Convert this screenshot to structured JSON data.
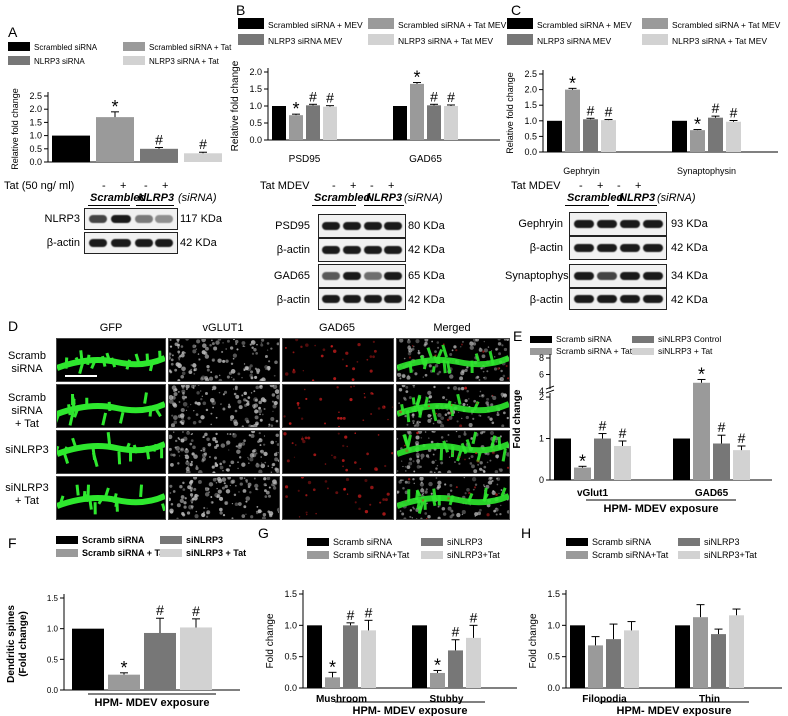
{
  "panels": {
    "A": "A",
    "B": "B",
    "C": "C",
    "D": "D",
    "E": "E",
    "F": "F",
    "G": "G",
    "H": "H"
  },
  "colors": {
    "black": "#000000",
    "dark_gray": "#777777",
    "mid_gray": "#9a9a9a",
    "light_gray": "#d2d2d2",
    "green": "#2ee82e",
    "red": "#e02020"
  },
  "chart_data": [
    {
      "id": "A",
      "type": "bar",
      "legend": [
        "Scrambled siRNA",
        "Scrambled siRNA + Tat",
        "NLRP3 siRNA",
        "NLRP3 siRNA + Tat"
      ],
      "categories": [
        ""
      ],
      "series": [
        {
          "name": "Scrambled siRNA",
          "values": [
            1.0
          ],
          "error": [
            0
          ]
        },
        {
          "name": "Scrambled siRNA + Tat",
          "values": [
            1.7
          ],
          "error": [
            0.2
          ]
        },
        {
          "name": "NLRP3 siRNA",
          "values": [
            0.5
          ],
          "error": [
            0.05
          ]
        },
        {
          "name": "NLRP3 siRNA + Tat",
          "values": [
            0.33
          ],
          "error": [
            0.04
          ]
        }
      ],
      "marks": [
        "",
        "*",
        "#",
        "#"
      ],
      "ylabel": "Relative fold change",
      "yticks": [
        "0.0",
        "0.5",
        "1.0",
        "1.5",
        "2.0",
        "2.5"
      ],
      "ylim": [
        0,
        2.5
      ]
    },
    {
      "id": "B",
      "type": "bar",
      "legend": [
        "Scrambled siRNA + MEV",
        "Scrambled siRNA + Tat MEV",
        "NLRP3 siRNA MEV",
        "NLRP3 siRNA + Tat MEV"
      ],
      "categories": [
        "PSD95",
        "GAD65"
      ],
      "series": [
        {
          "name": "Scrambled siRNA + MEV",
          "values": [
            1.0,
            1.0
          ],
          "error": [
            0,
            0
          ]
        },
        {
          "name": "Scrambled siRNA + Tat MEV",
          "values": [
            0.73,
            1.65
          ],
          "error": [
            0.03,
            0.04
          ]
        },
        {
          "name": "NLRP3 siRNA MEV",
          "values": [
            1.02,
            1.02
          ],
          "error": [
            0.03,
            0.03
          ]
        },
        {
          "name": "NLRP3 siRNA + Tat MEV",
          "values": [
            0.98,
            1.0
          ],
          "error": [
            0.03,
            0.03
          ]
        }
      ],
      "marks": [
        [
          "",
          "*",
          "#",
          "#"
        ],
        [
          "",
          "*",
          "#",
          "#"
        ]
      ],
      "ylabel": "Relative fold change",
      "yticks": [
        "0.0",
        "0.5",
        "1.0",
        "1.5",
        "2.0"
      ],
      "ylim": [
        0,
        2.0
      ]
    },
    {
      "id": "C",
      "type": "bar",
      "legend": [
        "Scrambled siRNA + MEV",
        "Scrambled siRNA + Tat MEV",
        "NLRP3 siRNA MEV",
        "NLRP3 siRNA + Tat MEV"
      ],
      "categories": [
        "Gephryin",
        "Synaptophysin"
      ],
      "series": [
        {
          "name": "Scrambled siRNA + MEV",
          "values": [
            1.0,
            1.0
          ],
          "error": [
            0,
            0
          ]
        },
        {
          "name": "Scrambled siRNA + Tat MEV",
          "values": [
            2.0,
            0.7
          ],
          "error": [
            0.04,
            0.02
          ]
        },
        {
          "name": "NLRP3 siRNA MEV",
          "values": [
            1.05,
            1.1
          ],
          "error": [
            0.03,
            0.05
          ]
        },
        {
          "name": "NLRP3 siRNA + Tat MEV",
          "values": [
            1.02,
            0.97
          ],
          "error": [
            0.02,
            0.04
          ]
        }
      ],
      "marks": [
        [
          "",
          "*",
          "#",
          "#"
        ],
        [
          "",
          "*",
          "#",
          "#"
        ]
      ],
      "ylabel": "Relative fold change",
      "yticks": [
        "0.0",
        "0.5",
        "1.0",
        "1.5",
        "2.0",
        "2.5"
      ],
      "ylim": [
        0,
        2.5
      ]
    },
    {
      "id": "E",
      "type": "bar",
      "legend": [
        "Scramb siRNA",
        "siNLRP3 Control",
        "Scramb siRNA + Tat",
        "siNLRP3 + Tat"
      ],
      "categories": [
        "vGlut1",
        "GAD65"
      ],
      "series": [
        {
          "name": "Scramb siRNA",
          "values": [
            1.0,
            1.0
          ],
          "error": [
            0,
            0
          ]
        },
        {
          "name": "Scramb siRNA + Tat",
          "values": [
            0.3,
            5.0
          ],
          "error": [
            0.03,
            0.4
          ]
        },
        {
          "name": "siNLRP3 Control",
          "values": [
            1.0,
            0.88
          ],
          "error": [
            0.12,
            0.2
          ]
        },
        {
          "name": "siNLRP3 + Tat",
          "values": [
            0.82,
            0.72
          ],
          "error": [
            0.12,
            0.1
          ]
        }
      ],
      "marks": [
        [
          "",
          "*",
          "#",
          "#"
        ],
        [
          "",
          "*",
          "#",
          "#"
        ]
      ],
      "ylabel": "Fold change",
      "xlabel": "HPM- MDEV exposure",
      "yticks": [
        "0",
        "1",
        "2",
        "4",
        "6",
        "8"
      ],
      "ylim": [
        0,
        8
      ]
    },
    {
      "id": "F",
      "type": "bar",
      "legend": [
        "Scramb siRNA",
        "siNLRP3",
        "Scramb siRNA + Tat",
        "siNLRP3 + Tat"
      ],
      "categories": [
        ""
      ],
      "series": [
        {
          "name": "Scramb siRNA",
          "values": [
            1.0
          ],
          "error": [
            0
          ]
        },
        {
          "name": "Scramb siRNA + Tat",
          "values": [
            0.25
          ],
          "error": [
            0.03
          ]
        },
        {
          "name": "siNLRP3",
          "values": [
            0.93
          ],
          "error": [
            0.24
          ]
        },
        {
          "name": "siNLRP3 + Tat",
          "values": [
            1.02
          ],
          "error": [
            0.14
          ]
        }
      ],
      "marks": [
        "",
        "*",
        "#",
        "#"
      ],
      "ylabel": "Dendritic spines (Fold change)",
      "xlabel": "HPM- MDEV exposure",
      "yticks": [
        "0.0",
        "0.5",
        "1.0",
        "1.5"
      ],
      "ylim": [
        0,
        1.5
      ]
    },
    {
      "id": "G",
      "type": "bar",
      "legend": [
        "Scramb siRNA",
        "siNLRP3",
        "Scramb siRNA+Tat",
        "siNLRP3+Tat"
      ],
      "categories": [
        "Mushroom",
        "Stubby"
      ],
      "series": [
        {
          "name": "Scramb siRNA",
          "values": [
            1.0,
            1.0
          ],
          "error": [
            0,
            0
          ]
        },
        {
          "name": "Scramb siRNA+Tat",
          "values": [
            0.17,
            0.24
          ],
          "error": [
            0.08,
            0.04
          ]
        },
        {
          "name": "siNLRP3",
          "values": [
            1.0,
            0.6
          ],
          "error": [
            0.04,
            0.17
          ]
        },
        {
          "name": "siNLRP3+Tat",
          "values": [
            0.92,
            0.8
          ],
          "error": [
            0.16,
            0.2
          ]
        }
      ],
      "marks": [
        [
          "",
          "*",
          "#",
          "#"
        ],
        [
          "",
          "*",
          "#",
          "#"
        ]
      ],
      "ylabel": "Fold change",
      "xlabel": "HPM- MDEV exposure",
      "yticks": [
        "0.0",
        "0.5",
        "1.0",
        "1.5"
      ],
      "ylim": [
        0,
        1.5
      ]
    },
    {
      "id": "H",
      "type": "bar",
      "legend": [
        "Scramb siRNA",
        "siNLRP3",
        "Scramb siRNA+Tat",
        "siNLRP3+Tat"
      ],
      "categories": [
        "Filopodia",
        "Thin"
      ],
      "series": [
        {
          "name": "Scramb siRNA",
          "values": [
            1.0,
            1.0
          ],
          "error": [
            0,
            0
          ]
        },
        {
          "name": "Scramb siRNA+Tat",
          "values": [
            0.68,
            1.13
          ],
          "error": [
            0.14,
            0.2
          ]
        },
        {
          "name": "siNLRP3",
          "values": [
            0.78,
            0.86
          ],
          "error": [
            0.24,
            0.08
          ]
        },
        {
          "name": "siNLRP3+Tat",
          "values": [
            0.92,
            1.16
          ],
          "error": [
            0.14,
            0.1
          ]
        }
      ],
      "marks": [
        [
          "",
          "",
          "",
          ""
        ],
        [
          "",
          "",
          "",
          ""
        ]
      ],
      "ylabel": "Fold change",
      "xlabel": "HPM- MDEV exposure",
      "yticks": [
        "0.0",
        "0.5",
        "1.0",
        "1.5"
      ],
      "ylim": [
        0,
        1.5
      ]
    }
  ],
  "blots": {
    "A": {
      "treatment_label": "Tat (50 ng/ ml)",
      "signs": [
        "-",
        "+",
        "-",
        "+"
      ],
      "groups": [
        "Scrambled",
        "NLRP3",
        "(siRNA)"
      ],
      "rows": [
        {
          "name": "NLRP3",
          "kda": "117 KDa"
        },
        {
          "name": "β-actin",
          "kda": "42 KDa"
        }
      ]
    },
    "B": {
      "treatment_label": "Tat MDEV",
      "signs": [
        "-",
        "+",
        "-",
        "+"
      ],
      "groups": [
        "Scrambled",
        "NLRP3",
        "(siRNA)"
      ],
      "rows": [
        {
          "name": "PSD95",
          "kda": "80 KDa"
        },
        {
          "name": "β-actin",
          "kda": "42 KDa"
        },
        {
          "name": "GAD65",
          "kda": "65 KDa"
        },
        {
          "name": "β-actin",
          "kda": "42 KDa"
        }
      ]
    },
    "C": {
      "treatment_label": "Tat MDEV",
      "signs": [
        "-",
        "+",
        "-",
        "+"
      ],
      "groups": [
        "Scrambled",
        "NLRP3",
        "(siRNA)"
      ],
      "rows": [
        {
          "name": "Gephryin",
          "kda": "93 KDa"
        },
        {
          "name": "β-actin",
          "kda": "42 KDa"
        },
        {
          "name": "Synaptophysin",
          "kda": "34 KDa"
        },
        {
          "name": "β-actin",
          "kda": "42 KDa"
        }
      ]
    }
  },
  "micrographs": {
    "columns": [
      "GFP",
      "vGLUT1",
      "GAD65",
      "Merged"
    ],
    "rows": [
      {
        "line1": "Scramb",
        "line2": "siRNA",
        "line3": ""
      },
      {
        "line1": "Scramb",
        "line2": "siRNA",
        "line3": "+ Tat"
      },
      {
        "line1": "siNLRP3",
        "line2": "",
        "line3": ""
      },
      {
        "line1": "siNLRP3",
        "line2": "+ Tat",
        "line3": ""
      }
    ]
  }
}
